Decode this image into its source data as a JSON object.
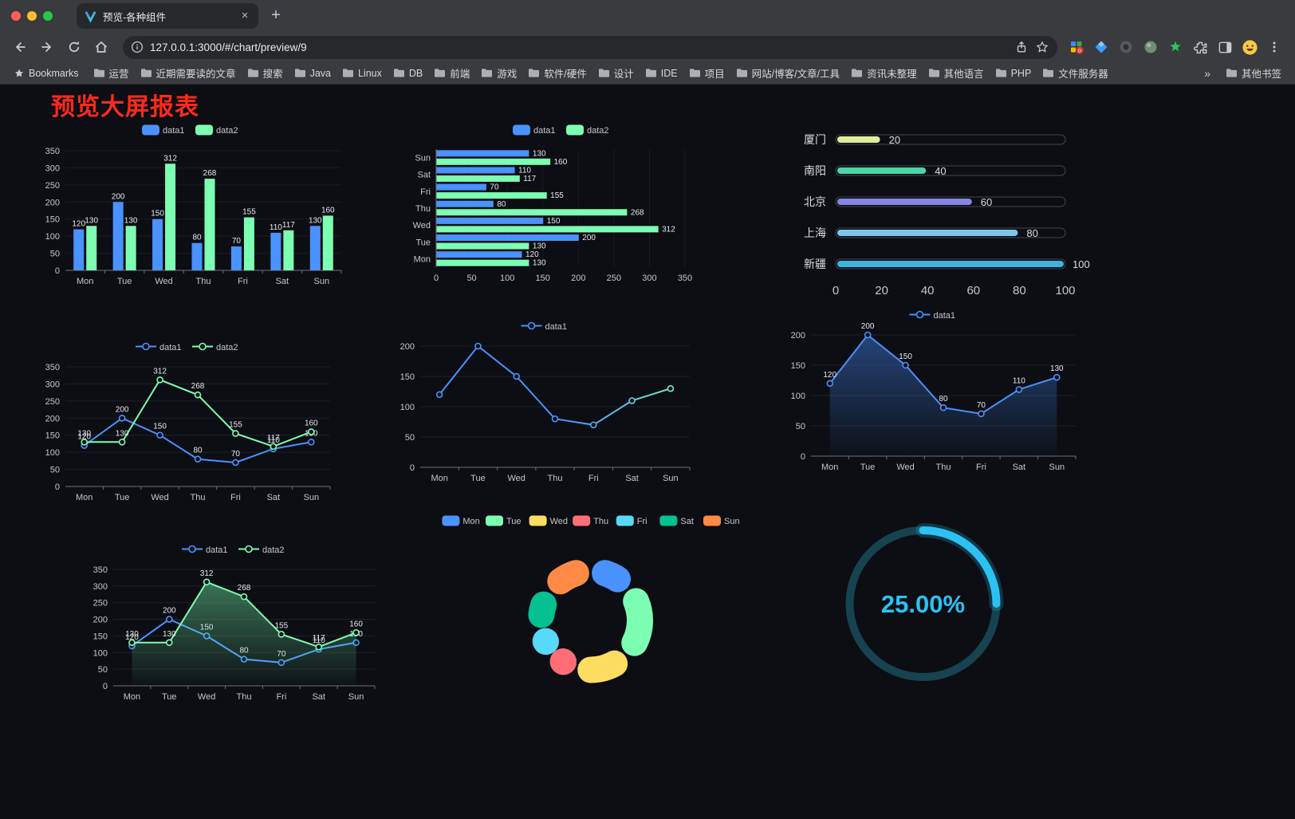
{
  "browser": {
    "tab": {
      "title": "预览-各种组件"
    },
    "glyphs": {
      "tab_close": "×",
      "new_tab": "+"
    },
    "address": {
      "url": "127.0.0.1:3000/#/chart/preview/9"
    },
    "bookmarks_bar": {
      "label": "Bookmarks",
      "folders": [
        "运营",
        "近期需要读的文章",
        "搜索",
        "Java",
        "Linux",
        "DB",
        "前端",
        "游戏",
        "软件/硬件",
        "设计",
        "IDE",
        "项目",
        "网站/博客/文章/工具",
        "资讯未整理",
        "其他语言",
        "PHP",
        "文件服务器"
      ],
      "overflow_glyph": "»",
      "other_bookmarks": "其他书签"
    }
  },
  "page": {
    "title": "预览大屏报表",
    "title_color": "#fd2a1c",
    "background": "#0c0e14"
  },
  "palette": {
    "data1_blue": "#4992ff",
    "data2_green": "#7cffb2",
    "axis_text": "#c6c7ce",
    "label_text": "#e8e8ee"
  },
  "chart_data": [
    {
      "id": "grouped-bar",
      "type": "bar",
      "categories": [
        "Mon",
        "Tue",
        "Wed",
        "Thu",
        "Fri",
        "Sat",
        "Sun"
      ],
      "series": [
        {
          "name": "data1",
          "color": "#4992ff",
          "values": [
            120,
            200,
            150,
            80,
            70,
            110,
            130
          ]
        },
        {
          "name": "data2",
          "color": "#7cffb2",
          "values": [
            130,
            130,
            312,
            268,
            155,
            117,
            160
          ]
        }
      ],
      "ylim": [
        0,
        350
      ],
      "ytick_step": 50,
      "labels": true,
      "legend_position": "top",
      "grid": true
    },
    {
      "id": "horizontal-bar",
      "type": "hbar",
      "categories": [
        "Mon",
        "Tue",
        "Wed",
        "Thu",
        "Fri",
        "Sat",
        "Sun"
      ],
      "series": [
        {
          "name": "data1",
          "color": "#4992ff",
          "values": [
            120,
            200,
            150,
            80,
            70,
            110,
            130
          ]
        },
        {
          "name": "data2",
          "color": "#7cffb2",
          "values": [
            130,
            130,
            312,
            268,
            155,
            117,
            160
          ]
        }
      ],
      "xlim": [
        0,
        350
      ],
      "xtick_step": 50,
      "labels": true,
      "legend_position": "top",
      "grid": true
    },
    {
      "id": "progress-bars",
      "type": "progress",
      "xlim": [
        0,
        100
      ],
      "xticks": [
        0,
        20,
        40,
        60,
        80,
        100
      ],
      "items": [
        {
          "name": "厦门",
          "value": 20,
          "color": "#dcee9d"
        },
        {
          "name": "南阳",
          "value": 40,
          "color": "#4fd3a4"
        },
        {
          "name": "北京",
          "value": 60,
          "color": "#8784e4"
        },
        {
          "name": "上海",
          "value": 80,
          "color": "#7cc7e8"
        },
        {
          "name": "新疆",
          "value": 100,
          "color": "#3fb3e0"
        }
      ]
    },
    {
      "id": "line-two-series",
      "type": "line",
      "categories": [
        "Mon",
        "Tue",
        "Wed",
        "Thu",
        "Fri",
        "Sat",
        "Sun"
      ],
      "series": [
        {
          "name": "data1",
          "color": "#4992ff",
          "values": [
            120,
            200,
            150,
            80,
            70,
            110,
            130
          ]
        },
        {
          "name": "data2",
          "color": "#7cffb2",
          "values": [
            130,
            130,
            312,
            268,
            155,
            117,
            160
          ]
        }
      ],
      "ylim": [
        0,
        350
      ],
      "ytick_step": 50,
      "labels": true,
      "legend_position": "top",
      "grid": true
    },
    {
      "id": "line-gradient",
      "type": "line",
      "categories": [
        "Mon",
        "Tue",
        "Wed",
        "Thu",
        "Fri",
        "Sat",
        "Sun"
      ],
      "series": [
        {
          "name": "data1",
          "gradient": [
            "#4992ff",
            "#7cffb2"
          ],
          "values": [
            120,
            200,
            150,
            80,
            70,
            110,
            130
          ]
        }
      ],
      "ylim": [
        0,
        200
      ],
      "ytick_step": 50,
      "labels": false,
      "legend_position": "top",
      "grid": true
    },
    {
      "id": "line-area",
      "type": "line",
      "categories": [
        "Mon",
        "Tue",
        "Wed",
        "Thu",
        "Fri",
        "Sat",
        "Sun"
      ],
      "series": [
        {
          "name": "data1",
          "color": "#4992ff",
          "area": true,
          "values": [
            120,
            200,
            150,
            80,
            70,
            110,
            130
          ]
        }
      ],
      "ylim": [
        0,
        200
      ],
      "ytick_step": 50,
      "labels": true,
      "legend_position": "top",
      "grid": true
    },
    {
      "id": "line-area-two-series",
      "type": "line",
      "categories": [
        "Mon",
        "Tue",
        "Wed",
        "Thu",
        "Fri",
        "Sat",
        "Sun"
      ],
      "series": [
        {
          "name": "data1",
          "color": "#4992ff",
          "values": [
            120,
            200,
            150,
            80,
            70,
            110,
            130
          ]
        },
        {
          "name": "data2",
          "color": "#7cffb2",
          "area": true,
          "values": [
            130,
            130,
            312,
            268,
            155,
            117,
            160
          ]
        }
      ],
      "ylim": [
        0,
        350
      ],
      "ytick_step": 50,
      "labels": true,
      "legend_position": "top",
      "grid": true
    },
    {
      "id": "donut-week",
      "type": "donut",
      "categories": [
        "Mon",
        "Tue",
        "Wed",
        "Thu",
        "Fri",
        "Sat",
        "Sun"
      ],
      "values": [
        120,
        200,
        150,
        80,
        70,
        110,
        130
      ],
      "colors": [
        "#4992ff",
        "#7cffb2",
        "#fddd60",
        "#ff6e76",
        "#58d9f9",
        "#05c091",
        "#ff8a45"
      ],
      "legend_position": "top"
    },
    {
      "id": "gauge-percent",
      "type": "gauge",
      "value": 25,
      "label": "25.00%",
      "color": "#2bc2f2",
      "track_color": "#17424f"
    }
  ]
}
